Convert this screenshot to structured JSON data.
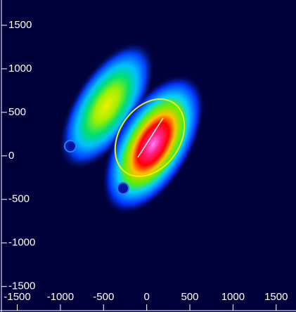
{
  "chart_data": {
    "type": "heatmap",
    "xlim": [
      -1700,
      1730
    ],
    "ylim": [
      -1680,
      1790
    ],
    "xticks": [
      -1500,
      -1000,
      -500,
      0,
      500,
      1000,
      1500
    ],
    "yticks": [
      -1500,
      -1000,
      -500,
      0,
      500,
      1000,
      1500
    ]
  }
}
